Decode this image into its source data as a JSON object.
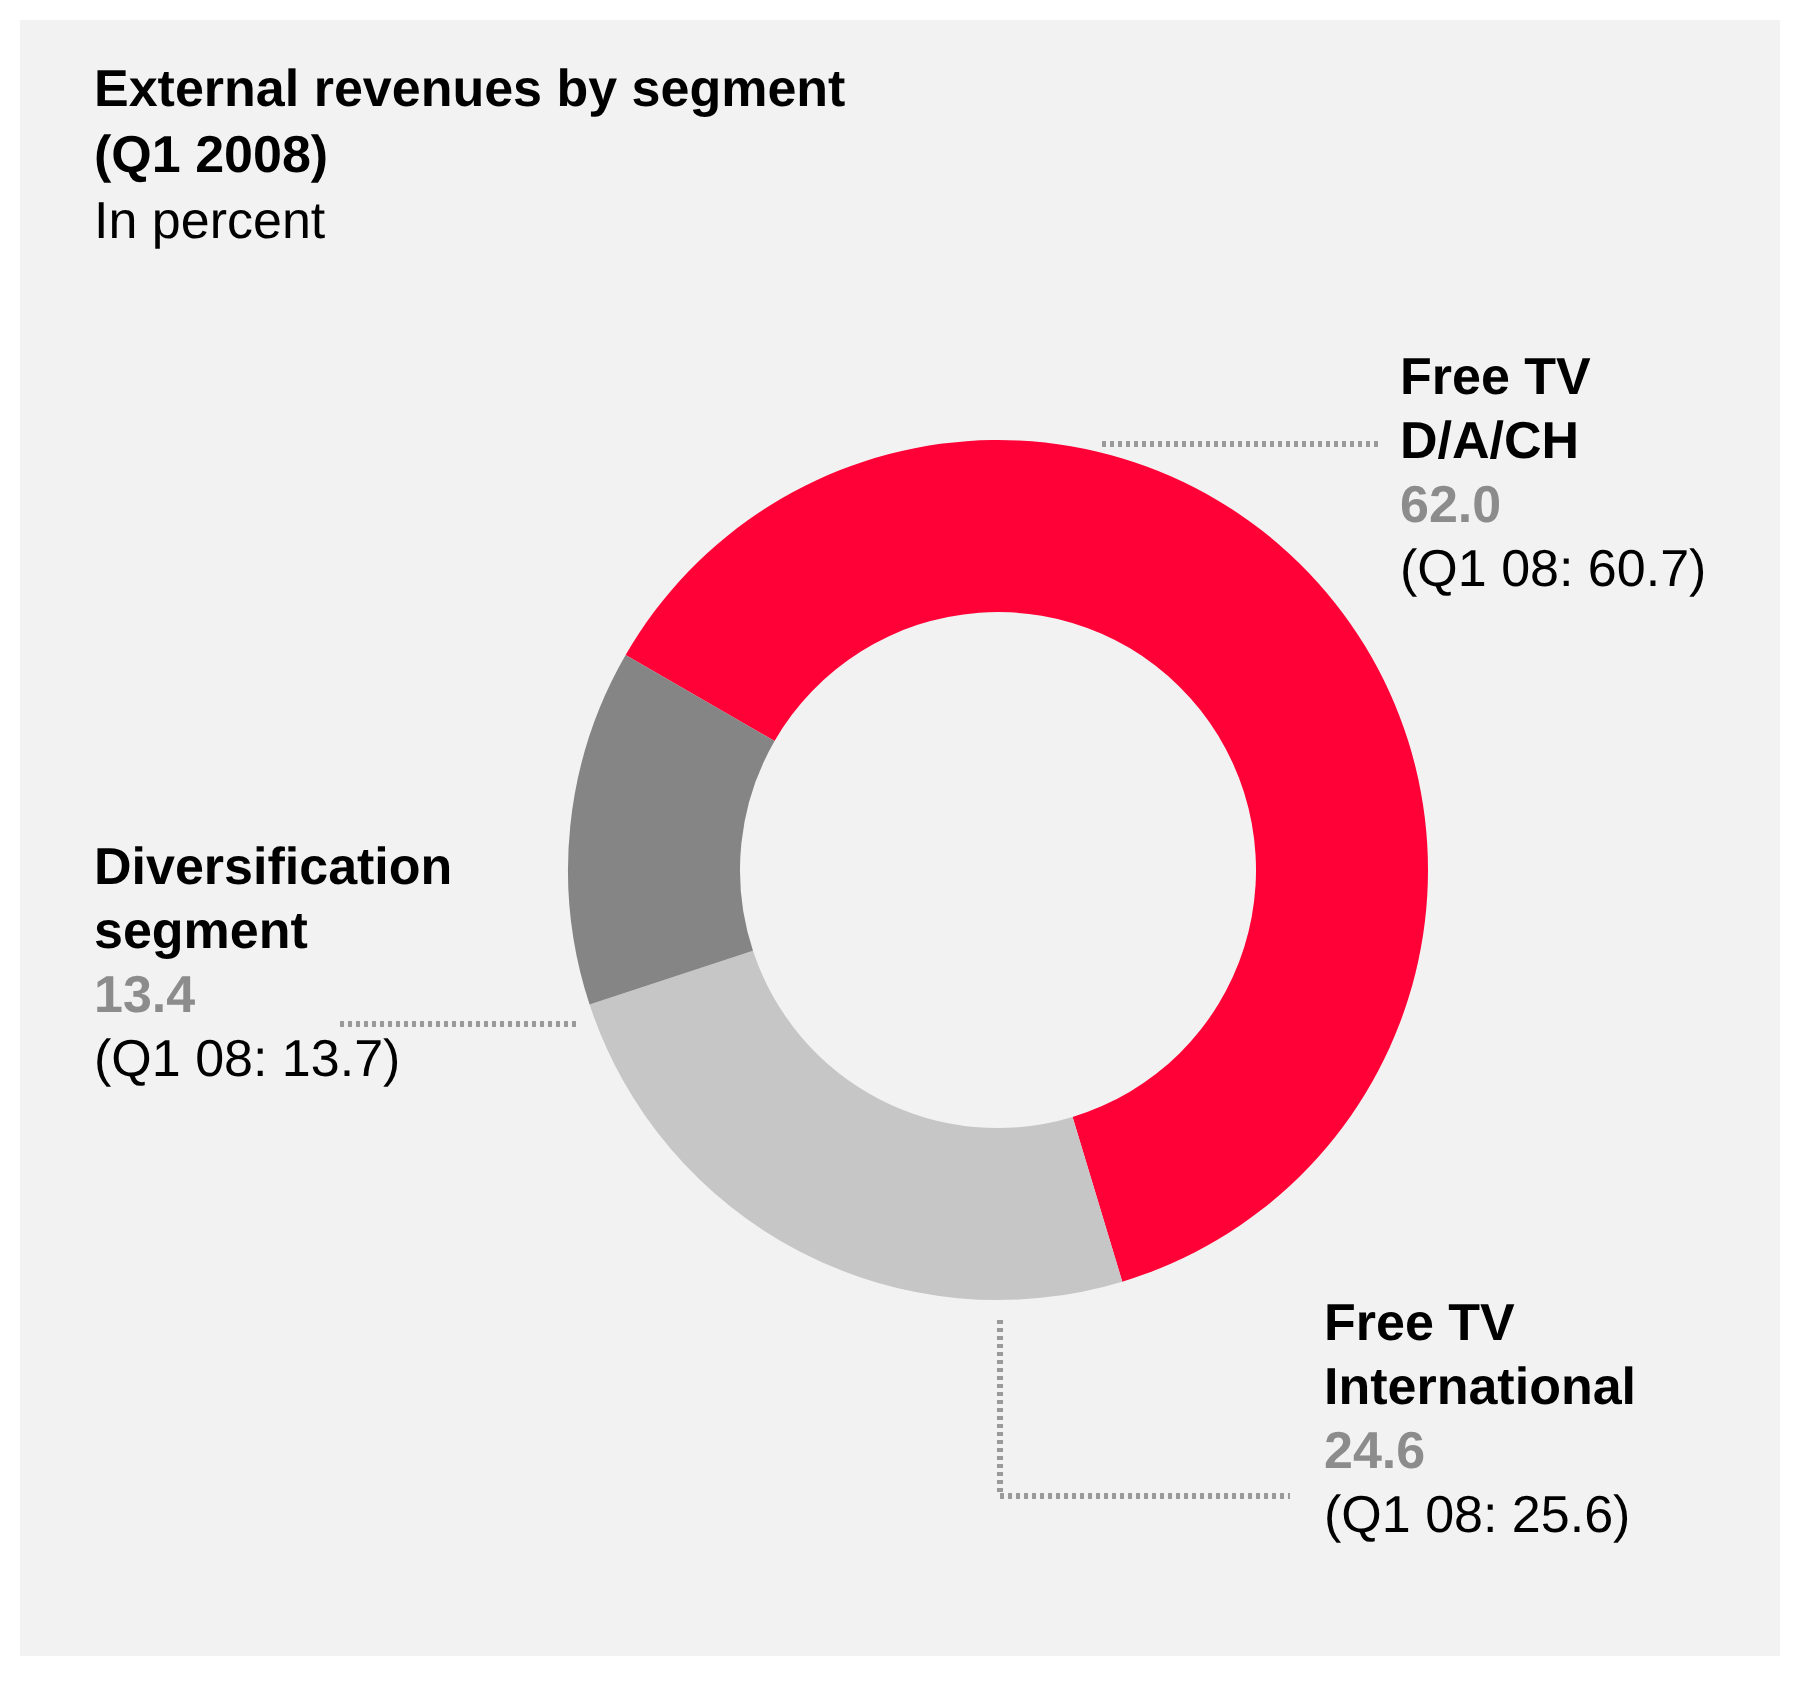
{
  "chart_data": {
    "type": "donut",
    "title": "External revenues by segment (Q1 2008)",
    "subtitle": "In percent",
    "categories": [
      "Free TV D/A/CH",
      "Free TV International",
      "Diversification segment"
    ],
    "values": [
      62.0,
      24.6,
      13.4
    ],
    "colors": [
      "#ff0037",
      "#c6c6c6",
      "#858585"
    ],
    "value_labels": [
      "62.0",
      "24.6",
      "13.4"
    ],
    "annotations": [
      "(Q1 08: 60.7)",
      "(Q1 08: 25.6)",
      "(Q1 08: 13.7)"
    ]
  }
}
